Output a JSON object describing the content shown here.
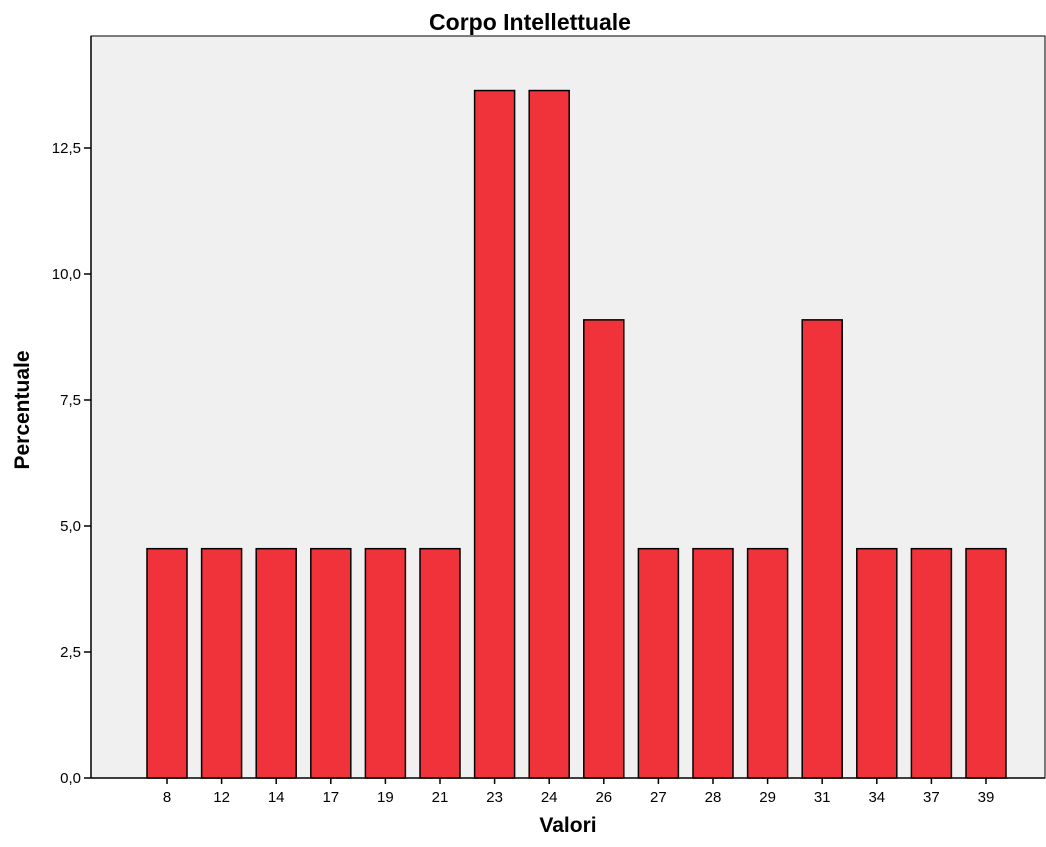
{
  "chart_data": {
    "type": "bar",
    "title": "Corpo Intellettuale",
    "xlabel": "Valori",
    "ylabel": "Percentuale",
    "categories": [
      "8",
      "12",
      "14",
      "17",
      "19",
      "21",
      "23",
      "24",
      "26",
      "27",
      "28",
      "29",
      "31",
      "34",
      "37",
      "39"
    ],
    "values": [
      4.55,
      4.55,
      4.55,
      4.55,
      4.55,
      4.55,
      13.64,
      13.64,
      9.09,
      4.55,
      4.55,
      4.55,
      9.09,
      4.55,
      4.55,
      4.55
    ],
    "ylim": [
      0,
      14.5
    ],
    "yticks": [
      "0,0",
      "2,5",
      "5,0",
      "7,5",
      "10,0",
      "12,5"
    ],
    "ytick_values": [
      0,
      2.5,
      5,
      7.5,
      10,
      12.5
    ],
    "grid": false,
    "legend": "none",
    "colors": {
      "bar_fill": "#f0333a",
      "bar_stroke": "#000000",
      "plot_background": "#f0f0f0"
    }
  }
}
